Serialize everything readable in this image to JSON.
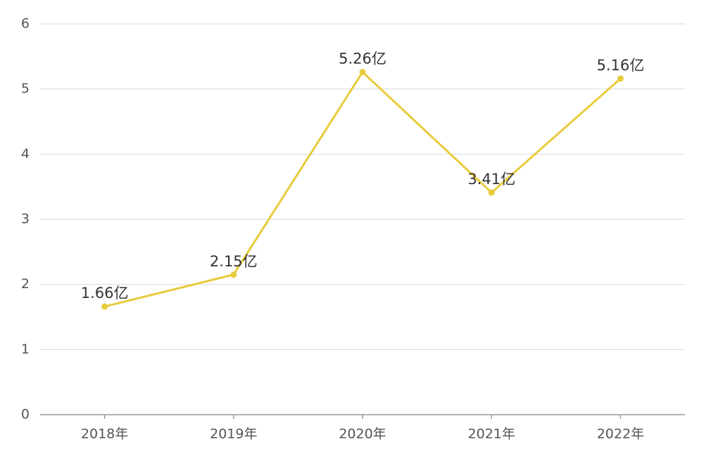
{
  "chart_data": {
    "type": "line",
    "categories": [
      "2018年",
      "2019年",
      "2020年",
      "2021年",
      "2022年"
    ],
    "values": [
      1.66,
      2.15,
      5.26,
      3.41,
      5.16
    ],
    "value_labels": [
      "1.66亿",
      "2.15亿",
      "5.26亿",
      "3.41亿",
      "5.16亿"
    ],
    "color": "#e8cb3c",
    "ylim": [
      0,
      6
    ],
    "yticks": [
      0,
      1,
      2,
      3,
      4,
      5,
      6
    ],
    "grid": true
  }
}
